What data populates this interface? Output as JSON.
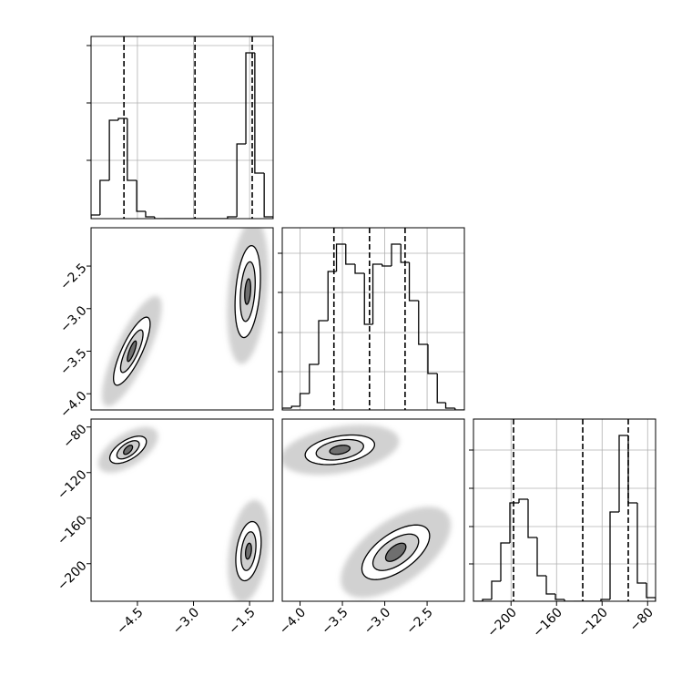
{
  "chart_data": [
    {
      "type": "histogram",
      "bins": [
        -5.74,
        -5.5,
        -5.25,
        -5.01,
        -4.77,
        -4.52,
        -4.28,
        -4.04,
        -3.79,
        -3.55,
        -3.31,
        -3.06,
        -2.82,
        -2.57,
        -2.33,
        -2.09,
        -1.84,
        -1.6,
        -1.36,
        -1.11,
        -0.87
      ],
      "values": [
        0.02,
        0.21,
        0.54,
        0.55,
        0.21,
        0.04,
        0.01,
        0,
        0,
        0,
        0,
        0,
        0,
        0,
        0,
        0.01,
        0.41,
        0.91,
        0.25,
        0.01
      ],
      "quantiles": [
        -4.86,
        -2.96,
        -1.43
      ],
      "xlim": [
        -5.74,
        -0.87
      ],
      "ylim": [
        0,
        1
      ],
      "xticks": [
        -4.5,
        -3,
        -1.5
      ],
      "yticks": [
        0.32,
        0.635,
        0.95
      ],
      "grid": true,
      "color": "#000000"
    },
    {
      "type": "contour",
      "xlim": [
        -5.74,
        -0.87
      ],
      "ylim": [
        -4.19,
        -2.05
      ],
      "yticks": [
        {
          "value": -4,
          "label": "−4.0"
        },
        {
          "value": -3.5,
          "label": "−3.5"
        },
        {
          "value": -3,
          "label": "−3.0"
        },
        {
          "value": -2.5,
          "label": "−2.5"
        }
      ],
      "grid": false,
      "blobs": [
        {
          "center": [
            -4.65,
            -3.5
          ],
          "rho": 0.8,
          "levels": [
            {
              "sx": 0.8,
              "sy": 0.65
            },
            {
              "sx": 0.49,
              "sy": 0.4
            },
            {
              "sx": 0.3,
              "sy": 0.25
            },
            {
              "sx": 0.12,
              "sy": 0.12
            }
          ]
        },
        {
          "center": [
            -1.55,
            -2.8
          ],
          "rho": 0.3,
          "levels": [
            {
              "sx": 0.55,
              "sy": 0.85
            },
            {
              "sx": 0.34,
              "sy": 0.54
            },
            {
              "sx": 0.2,
              "sy": 0.35
            },
            {
              "sx": 0.08,
              "sy": 0.15
            }
          ]
        }
      ]
    },
    {
      "type": "histogram",
      "bins": [
        -4.21,
        -4.1,
        -4.0,
        -3.89,
        -3.78,
        -3.67,
        -3.57,
        -3.46,
        -3.35,
        -3.24,
        -3.14,
        -3.03,
        -2.92,
        -2.81,
        -2.71,
        -2.6,
        -2.49,
        -2.38,
        -2.28,
        -2.17,
        -2.06
      ],
      "values": [
        0.01,
        0.02,
        0.09,
        0.25,
        0.49,
        0.76,
        0.91,
        0.8,
        0.75,
        0.47,
        0.8,
        0.79,
        0.91,
        0.81,
        0.6,
        0.36,
        0.2,
        0.04,
        0.01,
        0
      ],
      "quantiles": [
        -3.6,
        -3.18,
        -2.76
      ],
      "xlim": [
        -4.21,
        -2.06
      ],
      "ylim": [
        0,
        1
      ],
      "xticks": [
        -4,
        -3.5,
        -3,
        -2.5
      ],
      "yticks": [
        0.21,
        0.425,
        0.645,
        0.86
      ],
      "grid": true,
      "color": "#000000"
    },
    {
      "type": "contour",
      "xlim": [
        -5.74,
        -0.87
      ],
      "ylim": [
        -233,
        -73
      ],
      "xticks": [
        {
          "value": -4.5,
          "label": "−4.5"
        },
        {
          "value": -3,
          "label": "−3.0"
        },
        {
          "value": -1.5,
          "label": "−1.5"
        }
      ],
      "yticks": [
        {
          "value": -200,
          "label": "−200"
        },
        {
          "value": -160,
          "label": "−160"
        },
        {
          "value": -120,
          "label": "−120"
        },
        {
          "value": -80,
          "label": "−80"
        }
      ],
      "grid": false,
      "blobs": [
        {
          "center": [
            -4.75,
            -100
          ],
          "rho": 0.6,
          "levels": [
            {
              "sx": 0.8,
              "sy": 20
            },
            {
              "sx": 0.49,
              "sy": 12
            },
            {
              "sx": 0.3,
              "sy": 8
            },
            {
              "sx": 0.12,
              "sy": 4
            }
          ]
        },
        {
          "center": [
            -1.53,
            -189
          ],
          "rho": 0.3,
          "levels": [
            {
              "sx": 0.55,
              "sy": 45
            },
            {
              "sx": 0.34,
              "sy": 26
            },
            {
              "sx": 0.2,
              "sy": 17
            },
            {
              "sx": 0.08,
              "sy": 7
            }
          ]
        }
      ]
    },
    {
      "type": "contour",
      "xlim": [
        -4.21,
        -2.06
      ],
      "ylim": [
        -233,
        -73
      ],
      "xticks": [
        {
          "value": -4,
          "label": "−4.0"
        },
        {
          "value": -3.5,
          "label": "−3.5"
        },
        {
          "value": -3,
          "label": "−3.0"
        },
        {
          "value": -2.5,
          "label": "−2.5"
        }
      ],
      "grid": false,
      "blobs": [
        {
          "center": [
            -3.53,
            -100
          ],
          "rho": 0.35,
          "levels": [
            {
              "sx": 0.7,
              "sy": 22
            },
            {
              "sx": 0.41,
              "sy": 13
            },
            {
              "sx": 0.28,
              "sy": 9
            },
            {
              "sx": 0.12,
              "sy": 4
            }
          ]
        },
        {
          "center": [
            -2.87,
            -190
          ],
          "rho": 0.6,
          "levels": [
            {
              "sx": 0.65,
              "sy": 40
            },
            {
              "sx": 0.4,
              "sy": 24
            },
            {
              "sx": 0.27,
              "sy": 16
            },
            {
              "sx": 0.12,
              "sy": 8
            }
          ]
        }
      ]
    },
    {
      "type": "histogram",
      "bins": [
        -233,
        -225,
        -217,
        -209,
        -201,
        -193,
        -185,
        -177,
        -169,
        -161,
        -153,
        -145,
        -137,
        -129,
        -121,
        -113,
        -105,
        -97,
        -89,
        -81,
        -73
      ],
      "values": [
        0,
        0.01,
        0.11,
        0.32,
        0.54,
        0.56,
        0.35,
        0.14,
        0.04,
        0.01,
        0,
        0,
        0,
        0,
        0.01,
        0.49,
        0.91,
        0.54,
        0.1,
        0.02
      ],
      "quantiles": [
        -197.8,
        -137,
        -97
      ],
      "xlim": [
        -233,
        -73
      ],
      "ylim": [
        0,
        1
      ],
      "xticks": [
        {
          "value": -200,
          "label": "−200"
        },
        {
          "value": -160,
          "label": "−160"
        },
        {
          "value": -120,
          "label": "−120"
        },
        {
          "value": -80,
          "label": "−80"
        }
      ],
      "yticks": [
        0.205,
        0.41,
        0.62,
        0.83
      ],
      "grid": true,
      "color": "#000000"
    }
  ]
}
